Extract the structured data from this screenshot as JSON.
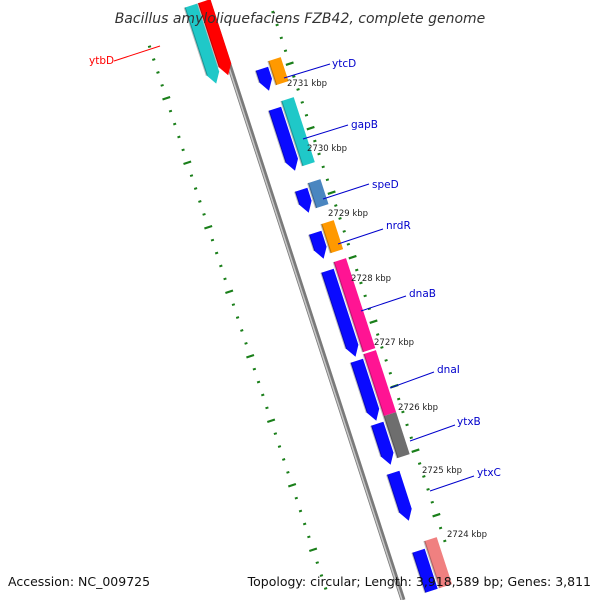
{
  "title": "Bacillus amyloliquefaciens FZB42, complete genome",
  "footer": {
    "accession": "Accession: NC_009725",
    "summary": "Topology: circular; Length: 3,918,589 bp; Genes: 3,811"
  },
  "kbp_marks": [
    {
      "label": "2731 kbp"
    },
    {
      "label": "2730 kbp"
    },
    {
      "label": "2729 kbp"
    },
    {
      "label": "2728 kbp"
    },
    {
      "label": "2727 kbp"
    },
    {
      "label": "2726 kbp"
    },
    {
      "label": "2725 kbp"
    },
    {
      "label": "2724 kbp"
    }
  ],
  "genes": [
    {
      "name": "ytbD",
      "color": "#ff0000"
    },
    {
      "name": "ytcD",
      "color": "#0000cc"
    },
    {
      "name": "gapB",
      "color": "#0000cc"
    },
    {
      "name": "speD",
      "color": "#0000cc"
    },
    {
      "name": "nrdR",
      "color": "#0000cc"
    },
    {
      "name": "dnaB",
      "color": "#0000cc"
    },
    {
      "name": "dnaI",
      "color": "#0000cc"
    },
    {
      "name": "ytxB",
      "color": "#0000cc"
    },
    {
      "name": "ytxC",
      "color": "#0000cc"
    }
  ],
  "colors": {
    "backbone": "#8a8a8a",
    "tick": "#1a7f1a",
    "cds_forward": "#0a0aff",
    "cyan": "#1fc8c8",
    "red": "#ff0000",
    "orange": "#ff9900",
    "steelblue": "#4a86c0",
    "magenta": "#ff1493",
    "gray": "#6e6e6e",
    "pink": "#f08080"
  }
}
